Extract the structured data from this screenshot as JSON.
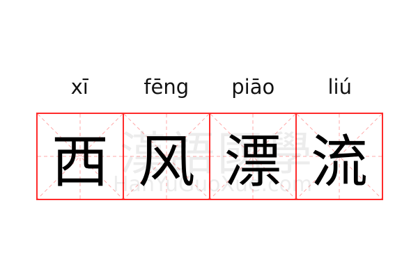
{
  "idiom": {
    "characters": [
      {
        "hanzi": "西",
        "pinyin": "xī"
      },
      {
        "hanzi": "风",
        "pinyin": "fēng"
      },
      {
        "hanzi": "漂",
        "pinyin": "piāo"
      },
      {
        "hanzi": "流",
        "pinyin": "liú"
      }
    ]
  },
  "watermark": {
    "chinese": "漢語國學",
    "latin": "HanYuGuoXue.com"
  },
  "colors": {
    "grid": "#ff2a2a",
    "guide": "#ffaaaa",
    "text": "#000000"
  }
}
